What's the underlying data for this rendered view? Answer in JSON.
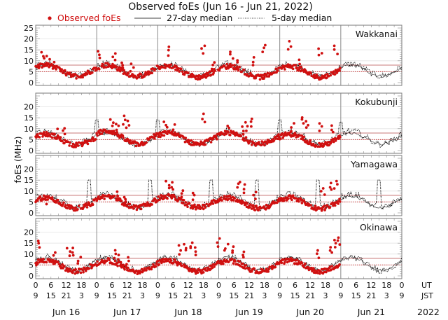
{
  "chart_data": {
    "type": "scatter",
    "title": "Observed foEs (Jun 16 - Jun 21, 2022)",
    "ylabel": "foEs (MHz)",
    "legend": {
      "placement": "top",
      "entries": [
        {
          "label": "Observed foEs",
          "style": "red-dot",
          "color": "#d01010"
        },
        {
          "label": "27-day median",
          "style": "solid-line",
          "color": "#000000"
        },
        {
          "label": "5-day median",
          "style": "dotted-line",
          "color": "#000000"
        }
      ]
    },
    "ylim": [
      0,
      25
    ],
    "yticks_top_panel": [
      "0",
      "5",
      "10",
      "15",
      "20",
      "25"
    ],
    "yticks_other_panels": [
      "0",
      "5",
      "10",
      "15",
      "20"
    ],
    "reference_lines": {
      "red_solid_mhz": 8,
      "red_dotted_mhz": 5
    },
    "x_axis": {
      "days": [
        "Jun 16",
        "Jun 17",
        "Jun 18",
        "Jun 19",
        "Jun 20",
        "Jun 21"
      ],
      "ut_ticks": [
        "0",
        "6",
        "12",
        "18"
      ],
      "jst_ticks": [
        "9",
        "15",
        "21",
        "3"
      ],
      "end_ut": "0",
      "end_jst": "9",
      "ut_label": "UT",
      "jst_label": "JST",
      "year": "2022",
      "range_hours": [
        0,
        144
      ]
    },
    "panels": [
      {
        "station": "Wakkanai",
        "observed_segments": [
          {
            "start": 0,
            "end": 24,
            "base": 5.5,
            "amp": 2.5,
            "peaks": [
              [
                3,
                14.5
              ],
              [
                5,
                12.5
              ],
              [
                7,
                10
              ]
            ]
          },
          {
            "start": 24,
            "end": 48,
            "base": 5.5,
            "amp": 2.5,
            "peaks": [
              [
                25,
                15
              ],
              [
                31,
                14
              ],
              [
                34,
                10
              ],
              [
                38,
                9
              ]
            ]
          },
          {
            "start": 48,
            "end": 72,
            "base": 5,
            "amp": 2.5,
            "peaks": [
              [
                52,
                16.5
              ],
              [
                66,
                17.5
              ],
              [
                70,
                10
              ]
            ]
          },
          {
            "start": 72,
            "end": 96,
            "base": 5,
            "amp": 2.5,
            "peaks": [
              [
                77,
                15
              ],
              [
                80,
                11
              ],
              [
                86,
                12
              ],
              [
                90,
                18
              ]
            ]
          },
          {
            "start": 96,
            "end": 120,
            "base": 5,
            "amp": 2.5,
            "peaks": [
              [
                100,
                19
              ],
              [
                104,
                11
              ],
              [
                112,
                16
              ],
              [
                118,
                17
              ]
            ]
          }
        ],
        "median27": {
          "base": 5.5,
          "amp": 2.5
        },
        "median5": {
          "base": 5.8,
          "amp": 2.8,
          "spikes": []
        }
      },
      {
        "station": "Kokubunji",
        "observed_segments": [
          {
            "start": 0,
            "end": 24,
            "base": 5,
            "amp": 2.5,
            "peaks": [
              [
                8,
                10
              ],
              [
                11,
                11
              ]
            ]
          },
          {
            "start": 24,
            "end": 48,
            "base": 6,
            "amp": 3,
            "peaks": [
              [
                30,
                15
              ],
              [
                32,
                13
              ],
              [
                35,
                16
              ],
              [
                36,
                14
              ]
            ]
          },
          {
            "start": 48,
            "end": 72,
            "base": 5.5,
            "amp": 2.5,
            "peaks": [
              [
                51,
                14
              ],
              [
                54,
                12
              ],
              [
                66,
                17
              ]
            ]
          },
          {
            "start": 72,
            "end": 96,
            "base": 5.5,
            "amp": 2.5,
            "peaks": [
              [
                76,
                12
              ],
              [
                81,
                11
              ],
              [
                83,
                13
              ],
              [
                85,
                15
              ]
            ]
          },
          {
            "start": 96,
            "end": 120,
            "base": 5,
            "amp": 2.5,
            "peaks": [
              [
                101,
                13
              ],
              [
                105,
                16
              ],
              [
                107,
                14
              ],
              [
                112,
                13
              ],
              [
                117,
                12
              ]
            ]
          }
        ],
        "median27": {
          "base": 5.5,
          "amp": 2.5
        },
        "median5": {
          "base": 6,
          "amp": 3,
          "spikes": [
            [
              24,
              14
            ],
            [
              48,
              14
            ],
            [
              96,
              14
            ],
            [
              120,
              13
            ]
          ]
        }
      },
      {
        "station": "Yamagawa",
        "observed_segments": [
          {
            "start": 0,
            "end": 24,
            "base": 4.5,
            "amp": 2.5,
            "peaks": [
              [
                4,
                8
              ]
            ]
          },
          {
            "start": 24,
            "end": 48,
            "base": 5,
            "amp": 2.5,
            "peaks": [
              [
                32,
                10
              ],
              [
                35,
                8
              ]
            ]
          },
          {
            "start": 48,
            "end": 72,
            "base": 5,
            "amp": 2.5,
            "peaks": [
              [
                52,
                15
              ],
              [
                54,
                14
              ],
              [
                58,
                11
              ],
              [
                62,
                10
              ]
            ]
          },
          {
            "start": 72,
            "end": 96,
            "base": 4.5,
            "amp": 2.5,
            "peaks": [
              [
                80,
                15
              ],
              [
                82,
                13
              ],
              [
                86,
                10
              ]
            ]
          },
          {
            "start": 96,
            "end": 120,
            "base": 4.5,
            "amp": 2.5,
            "peaks": [
              [
                113,
                12
              ],
              [
                116,
                14
              ],
              [
                118,
                15
              ]
            ]
          }
        ],
        "median27": {
          "base": 5,
          "amp": 2.5
        },
        "median5": {
          "base": 5.5,
          "amp": 3,
          "spikes": [
            [
              21,
              15
            ],
            [
              45,
              15
            ],
            [
              69,
              15
            ],
            [
              87,
              15
            ],
            [
              111,
              15
            ],
            [
              135,
              15
            ]
          ]
        }
      },
      {
        "station": "Okinawa",
        "observed_segments": [
          {
            "start": 0,
            "end": 24,
            "base": 4.5,
            "amp": 2.5,
            "peaks": [
              [
                1,
                16.5
              ],
              [
                7,
                11
              ],
              [
                13,
                13
              ],
              [
                15,
                13
              ],
              [
                17,
                9
              ]
            ]
          },
          {
            "start": 24,
            "end": 48,
            "base": 4.5,
            "amp": 2.5,
            "peaks": [
              [
                31,
                12
              ],
              [
                33,
                10
              ],
              [
                36,
                9
              ]
            ]
          },
          {
            "start": 48,
            "end": 72,
            "base": 4.5,
            "amp": 2.5,
            "peaks": [
              [
                57,
                14
              ],
              [
                59,
                15
              ],
              [
                61,
                16
              ],
              [
                63,
                13
              ]
            ]
          },
          {
            "start": 72,
            "end": 96,
            "base": 4.5,
            "amp": 2.5,
            "peaks": [
              [
                72,
                17.5
              ],
              [
                75,
                15
              ],
              [
                78,
                14
              ],
              [
                82,
                12
              ]
            ]
          },
          {
            "start": 96,
            "end": 120,
            "base": 4.5,
            "amp": 2.5,
            "peaks": [
              [
                111,
                12
              ],
              [
                116,
                14
              ],
              [
                118,
                17
              ],
              [
                119,
                18
              ]
            ]
          }
        ],
        "median27": {
          "base": 5.5,
          "amp": 3
        },
        "median5": {
          "base": 5.5,
          "amp": 3,
          "spikes": []
        }
      }
    ]
  }
}
